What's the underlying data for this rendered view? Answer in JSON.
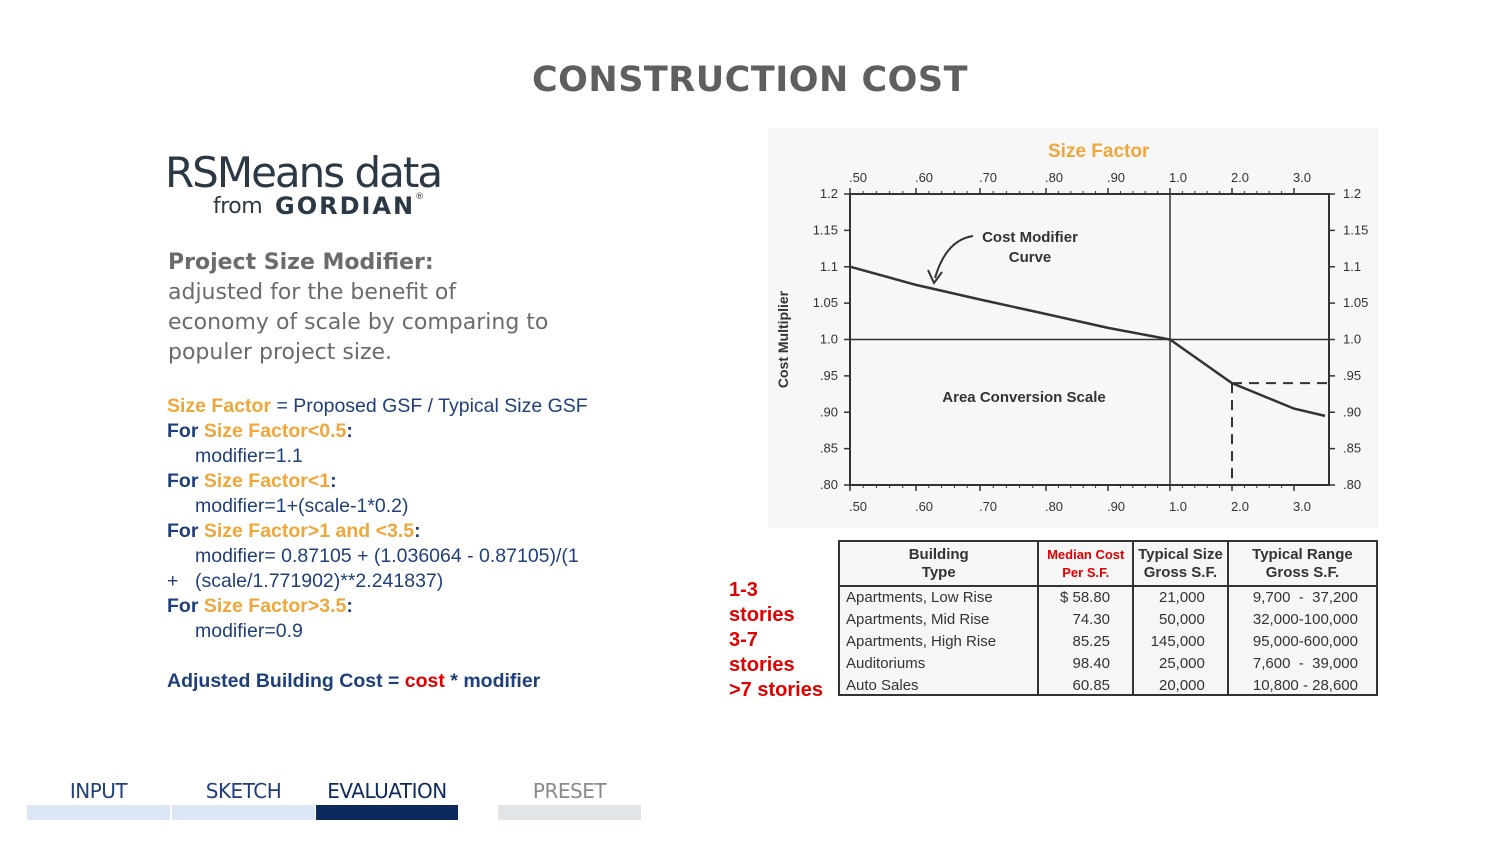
{
  "title": "CONSTRUCTION COST",
  "logo": {
    "main": "RSMeans data",
    "from": "from",
    "brand": "GORDIAN",
    "reg": "®"
  },
  "description": {
    "heading": "Project Size Modifier:",
    "lines": [
      "adjusted for the benefit of",
      "economy of scale by comparing to",
      "populer project size."
    ]
  },
  "formula": {
    "l1_a": "Size Factor",
    "l1_b": " = Proposed GSF / Typical Size GSF",
    "for": "For ",
    "c1": "Size Factor<0.5",
    "c1_val": "modifier=1.1",
    "c2": "Size Factor<1",
    "c2_val": "modifier=1+(scale-1*0.2)",
    "c3": "Size Factor>1 and <3.5",
    "c3_val": "modifier= 0.87105 + (1.036064 - 0.87105)/(1",
    "c3_cont_plus": "+",
    "c3_cont": "(scale/1.771902)**2.241837)",
    "c4": "Size Factor>3.5",
    "c4_val": "modifier=0.9",
    "colon": ":",
    "adj_a": "Adjusted Building Cost = ",
    "adj_cost": "cost",
    "adj_b": " * modifier"
  },
  "chart_data": {
    "type": "line",
    "title": "Size Factor",
    "ylabel": "Cost Multiplier",
    "x_ticks": [
      ".50",
      ".60",
      ".70",
      ".80",
      ".90",
      "1.0",
      "2.0",
      "3.0"
    ],
    "y_ticks": [
      "1.2",
      "1.15",
      "1.1",
      "1.05",
      "1.0",
      ".95",
      ".90",
      ".85",
      ".80"
    ],
    "y_ticks_right": [
      "1.2",
      "1.15",
      "1.1",
      "1.05",
      "1.0",
      ".95",
      ".90",
      ".85",
      ".80"
    ],
    "annotations": [
      "Cost Modifier",
      "Curve",
      "Area Conversion Scale"
    ],
    "series": [
      {
        "x": [
          0.5,
          0.6,
          0.7,
          0.8,
          0.9,
          1.0,
          2.0,
          3.0,
          3.5
        ],
        "y": [
          1.1,
          1.075,
          1.055,
          1.035,
          1.016,
          1.0,
          0.94,
          0.905,
          0.895
        ]
      }
    ],
    "reference": {
      "x": 2.0,
      "y": 0.94
    }
  },
  "table": {
    "headers": {
      "type_1": "Building",
      "type_2": "Type",
      "median_1": "Median Cost",
      "median_2": "Per S.F.",
      "size_1": "Typical Size",
      "size_2": "Gross S.F.",
      "range_1": "Typical Range",
      "range_2": "Gross S.F."
    },
    "rows": [
      {
        "type": "Apartments, Low Rise",
        "median": "$ 58.80",
        "size": "21,000",
        "low": "9,700",
        "dash": "-",
        "high": "37,200"
      },
      {
        "type": "Apartments, Mid Rise",
        "median": "74.30",
        "size": "50,000",
        "low": "32,000",
        "dash": "-",
        "high": "100,000"
      },
      {
        "type": "Apartments, High Rise",
        "median": "85.25",
        "size": "145,000",
        "low": "95,000",
        "dash": "-",
        "high": "600,000"
      },
      {
        "type": "Auditoriums",
        "median": "98.40",
        "size": "25,000",
        "low": "7,600",
        "dash": "-",
        "high": "39,000"
      },
      {
        "type": "Auto Sales",
        "median": "60.85",
        "size": "20,000",
        "low": "10,800",
        "dash": "-",
        "high": "28,600"
      }
    ]
  },
  "stories": [
    "1-3",
    "stories",
    "3-7",
    "stories",
    ">7 stories"
  ],
  "tabs": [
    {
      "label": "INPUT",
      "color": "#1f3f7a",
      "bar": "#dce6f6"
    },
    {
      "label": "SKETCH",
      "color": "#1f3f7a",
      "bar": "#dce6f6"
    },
    {
      "label": "EVALUATION",
      "color": "#0e2a5c",
      "bar": "#0e2a5c"
    },
    {
      "label": "PRESET",
      "color": "#8a8a8a",
      "bar": "#e2e5e8"
    }
  ]
}
